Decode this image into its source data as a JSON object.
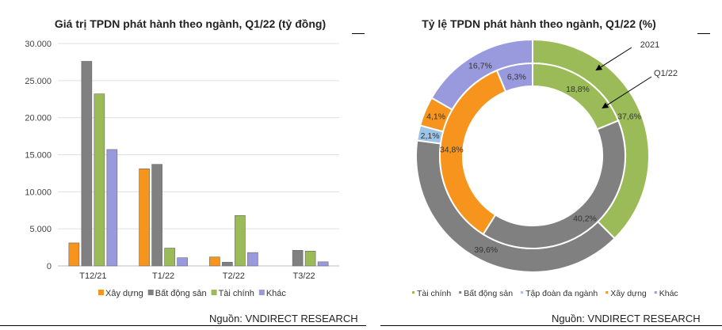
{
  "sources": {
    "left": "Nguồn: VNDIRECT RESEARCH",
    "right": "Nguồn: VNDIRECT RESEARCH"
  },
  "chart_data": [
    {
      "type": "bar",
      "title": "Giá trị TPDN phát hành theo ngành, Q1/22 (tỷ đồng)",
      "categories": [
        "T12/21",
        "T1/22",
        "T2/22",
        "T3/22"
      ],
      "ylim": [
        0,
        30000
      ],
      "yticks": [
        0,
        5000,
        10000,
        15000,
        20000,
        25000,
        30000
      ],
      "ytick_labels": [
        "0",
        "5.000",
        "10.000",
        "15.000",
        "20.000",
        "25.000",
        "30.000"
      ],
      "grid": true,
      "legend": "bottom",
      "series": [
        {
          "name": "Xây dựng",
          "color": "#f7941d",
          "values": [
            3100,
            13100,
            1200,
            0
          ]
        },
        {
          "name": "Bất động sản",
          "color": "#808080",
          "values": [
            27600,
            13700,
            500,
            2100
          ]
        },
        {
          "name": "Tài chính",
          "color": "#9bbb59",
          "values": [
            23200,
            2400,
            6800,
            2000
          ]
        },
        {
          "name": "Khác",
          "color": "#9999dd",
          "values": [
            15700,
            1100,
            1800,
            550
          ]
        }
      ]
    },
    {
      "type": "pie",
      "subtype": "donut",
      "title": "Tỷ lệ TPDN phát hành theo ngành, Q1/22 (%)",
      "legend": "bottom",
      "categories": [
        "Tài chính",
        "Bất động sản",
        "Tập đoàn đa ngành",
        "Xây dựng",
        "Khác"
      ],
      "colors": [
        "#9bbb59",
        "#808080",
        "#9dc3e6",
        "#f7941d",
        "#9999dd"
      ],
      "rings": [
        {
          "name": "2021",
          "position": "outer",
          "values": [
            37.6,
            39.6,
            2.1,
            4.1,
            16.7
          ],
          "labels": [
            "37,6%",
            "39,6%",
            "2,1%",
            "4,1%",
            "16,7%"
          ]
        },
        {
          "name": "Q1/22",
          "position": "inner",
          "values": [
            18.8,
            40.2,
            0,
            34.8,
            6.3
          ],
          "labels": [
            "18,8%",
            "40,2%",
            "",
            "34,8%",
            "6,3%"
          ]
        }
      ]
    }
  ]
}
